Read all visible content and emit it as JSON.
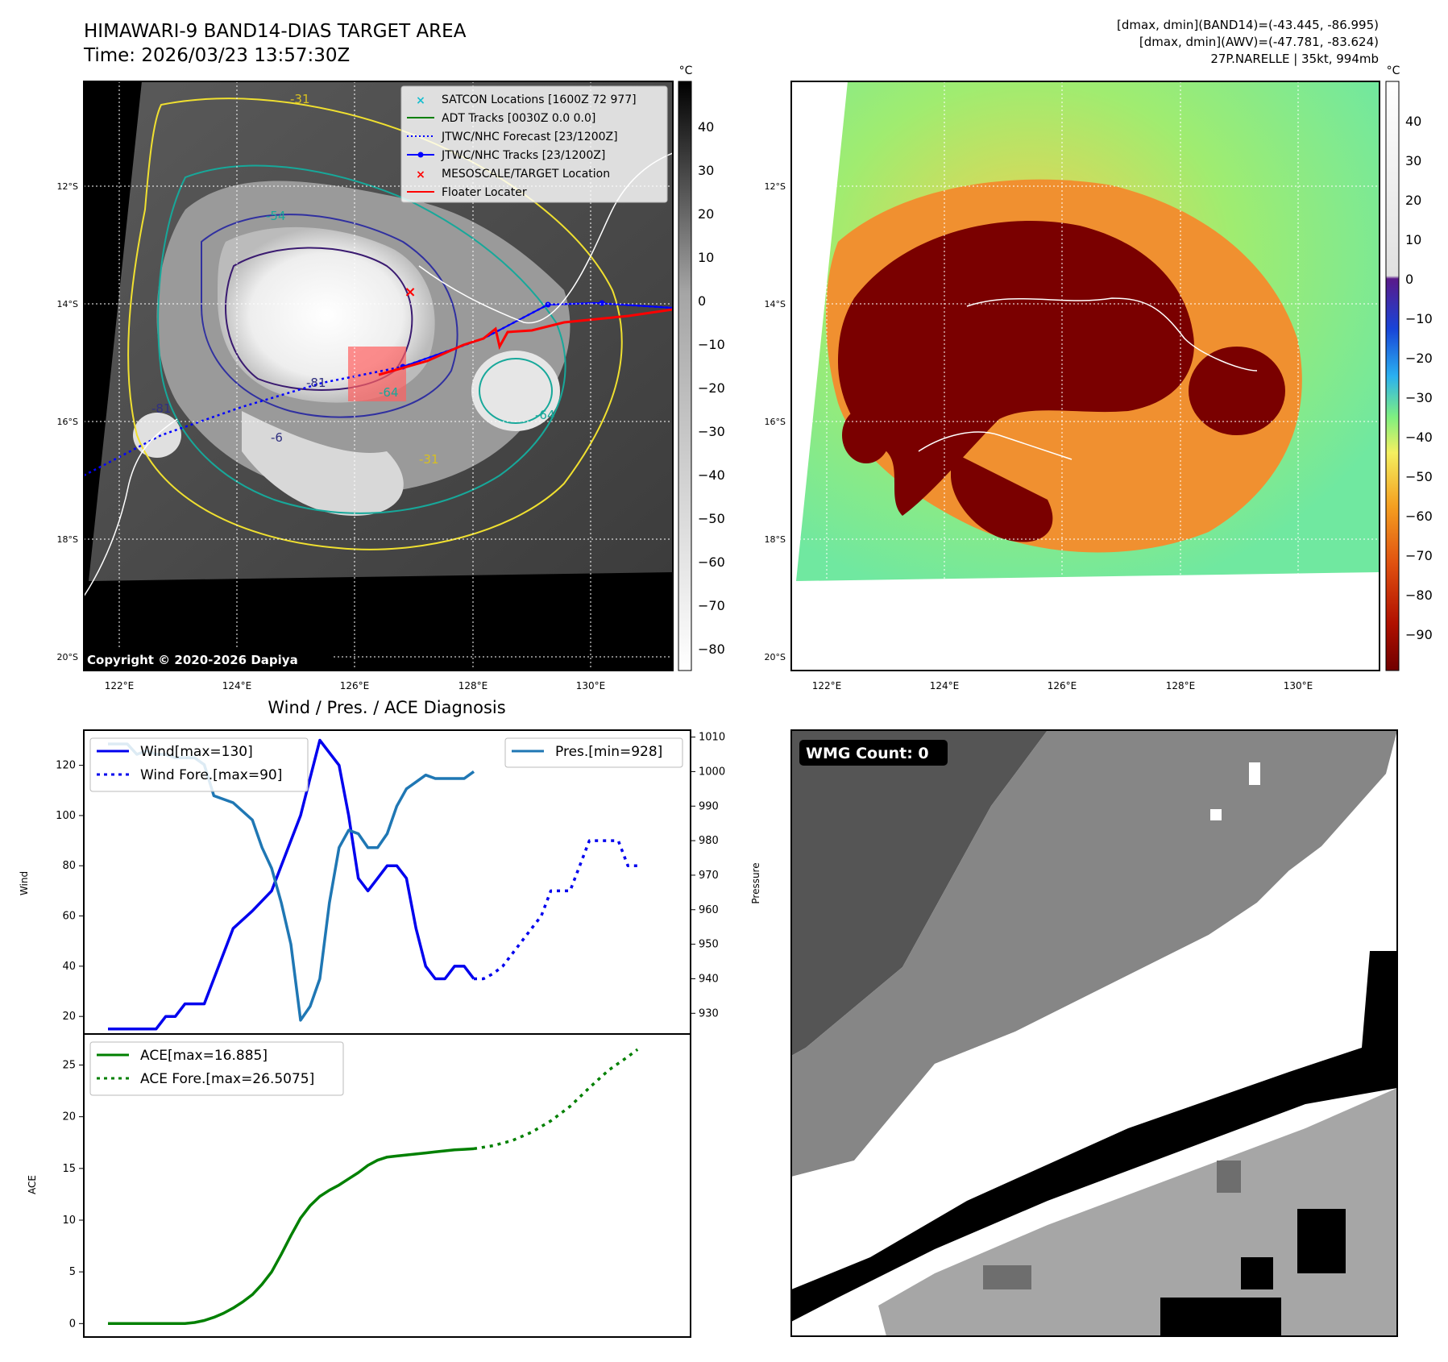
{
  "header": {
    "title": "HIMAWARI-9 BAND14-DIAS TARGET AREA",
    "time": "Time: 2026/03/23 13:57:30Z",
    "stat_line1": "[dmax, dmin](BAND14)=(-43.445, -86.995)",
    "stat_line2": "[dmax, dmin](AWV)=(-47.781, -83.624)",
    "stat_line3": "27P.NARELLE | 35kt, 994mb"
  },
  "map": {
    "lat_labels": [
      "12°S",
      "14°S",
      "16°S",
      "18°S",
      "20°S"
    ],
    "lon_labels": [
      "122°E",
      "124°E",
      "126°E",
      "128°E",
      "130°E"
    ],
    "copyright": "Copyright © 2020-2026 Dapiya",
    "contour_labels": [
      "-31",
      "-54",
      "-81",
      "-81",
      "-64",
      "-64",
      "-31",
      "-6"
    ],
    "legend": [
      {
        "label": "SATCON Locations [1600Z 72 977]",
        "color": "#17becf",
        "marker": "x"
      },
      {
        "label": "ADT Tracks [0030Z 0.0 0.0]",
        "color": "#008000",
        "marker": "line"
      },
      {
        "label": "JTWC/NHC Forecast [23/1200Z]",
        "color": "#0000ff",
        "marker": "dotted"
      },
      {
        "label": "JTWC/NHC Tracks [23/1200Z]",
        "color": "#0000ff",
        "marker": "line-dot"
      },
      {
        "label": "MESOSCALE/TARGET Location",
        "color": "#ff0000",
        "marker": "x"
      },
      {
        "label": "Floater Locater",
        "color": "#ff0000",
        "marker": "line"
      }
    ]
  },
  "colorbar_left": {
    "unit": "°C",
    "ticks": [
      "40",
      "30",
      "20",
      "10",
      "0",
      "−10",
      "−20",
      "−30",
      "−40",
      "−50",
      "−60",
      "−70",
      "−80"
    ]
  },
  "colorbar_right": {
    "unit": "°C",
    "ticks": [
      "40",
      "30",
      "20",
      "10",
      "0",
      "−10",
      "−20",
      "−30",
      "−40",
      "−50",
      "−60",
      "−70",
      "−80",
      "−90"
    ]
  },
  "wmg": {
    "label": "WMG Count: 0"
  },
  "chart_data": [
    {
      "type": "line",
      "title": "Wind / Pres. / ACE Diagnosis",
      "ylabel": "Wind",
      "ylabel2": "Pressure",
      "ylim": [
        13,
        134
      ],
      "ylim2": [
        924,
        1012
      ],
      "yticks": [
        "20",
        "40",
        "60",
        "80",
        "100",
        "120"
      ],
      "yticks2": [
        "930",
        "940",
        "950",
        "960",
        "970",
        "980",
        "990",
        "1000",
        "1010"
      ],
      "legend_left": [
        "Wind[max=130]",
        "Wind Fore.[max=90]"
      ],
      "legend_right": [
        "Pres.[min=928]"
      ],
      "series": [
        {
          "name": "Wind[max=130]",
          "color": "#0000ee",
          "style": "solid",
          "x": [
            0,
            3,
            4,
            5,
            6,
            7,
            8,
            9,
            10,
            11,
            13,
            15,
            17,
            19,
            20,
            21,
            22,
            23,
            24,
            25,
            26,
            27,
            28,
            29,
            30,
            31,
            32,
            33,
            34,
            35,
            36,
            37,
            38
          ],
          "values": [
            15,
            15,
            15,
            15,
            20,
            20,
            25,
            25,
            25,
            35,
            55,
            62,
            70,
            90,
            100,
            115,
            130,
            125,
            120,
            100,
            75,
            70,
            75,
            80,
            80,
            75,
            55,
            40,
            35,
            35,
            40,
            40,
            35
          ]
        },
        {
          "name": "Wind Fore.[max=90]",
          "color": "#0000ee",
          "style": "dotted",
          "x": [
            38,
            39,
            40,
            41,
            42,
            43,
            44,
            45,
            46,
            47,
            48,
            49,
            50,
            51,
            52,
            53,
            54,
            55
          ],
          "values": [
            35,
            35,
            37,
            40,
            45,
            50,
            55,
            60,
            70,
            70,
            70,
            80,
            90,
            90,
            90,
            90,
            80,
            80
          ]
        },
        {
          "name": "Pres.[min=928]",
          "color": "#1f77b4",
          "style": "solid",
          "axis": "right",
          "x": [
            0,
            2,
            3,
            4,
            5,
            6,
            7,
            8,
            9,
            10,
            11,
            13,
            15,
            16,
            17,
            18,
            19,
            20,
            21,
            22,
            23,
            24,
            25,
            26,
            27,
            28,
            29,
            30,
            31,
            32,
            33,
            34,
            35,
            36,
            37,
            38
          ],
          "values": [
            1008,
            1008,
            1005,
            1006,
            1005,
            1005,
            1004,
            1004,
            1004,
            1002,
            993,
            991,
            986,
            978,
            972,
            962,
            950,
            928,
            932,
            940,
            962,
            978,
            983,
            982,
            978,
            978,
            982,
            990,
            995,
            997,
            999,
            998,
            998,
            998,
            998,
            1000
          ]
        }
      ]
    },
    {
      "type": "line",
      "ylabel": "ACE",
      "ylim": [
        -1.3,
        28
      ],
      "yticks": [
        "0",
        "5",
        "10",
        "15",
        "20",
        "25"
      ],
      "legend": [
        "ACE[max=16.885]",
        "ACE Fore.[max=26.5075]"
      ],
      "series": [
        {
          "name": "ACE[max=16.885]",
          "color": "#008000",
          "style": "solid",
          "x": [
            0,
            4,
            8,
            9,
            10,
            11,
            12,
            13,
            14,
            15,
            16,
            17,
            18,
            19,
            20,
            21,
            22,
            23,
            24,
            25,
            26,
            27,
            28,
            29,
            30,
            31,
            32,
            33,
            34,
            35,
            36,
            37,
            38
          ],
          "values": [
            0,
            0,
            0,
            0.1,
            0.3,
            0.6,
            1.0,
            1.5,
            2.1,
            2.8,
            3.8,
            5.0,
            6.7,
            8.5,
            10.2,
            11.4,
            12.3,
            12.9,
            13.4,
            14.0,
            14.6,
            15.3,
            15.8,
            16.1,
            16.2,
            16.3,
            16.4,
            16.5,
            16.6,
            16.7,
            16.8,
            16.85,
            16.9
          ]
        },
        {
          "name": "ACE Fore.[max=26.5075]",
          "color": "#008000",
          "style": "dotted",
          "x": [
            38,
            40,
            42,
            44,
            46,
            48,
            50,
            52,
            54,
            55
          ],
          "values": [
            16.9,
            17.2,
            17.7,
            18.5,
            19.6,
            21.0,
            22.8,
            24.5,
            25.8,
            26.5
          ]
        }
      ]
    }
  ]
}
